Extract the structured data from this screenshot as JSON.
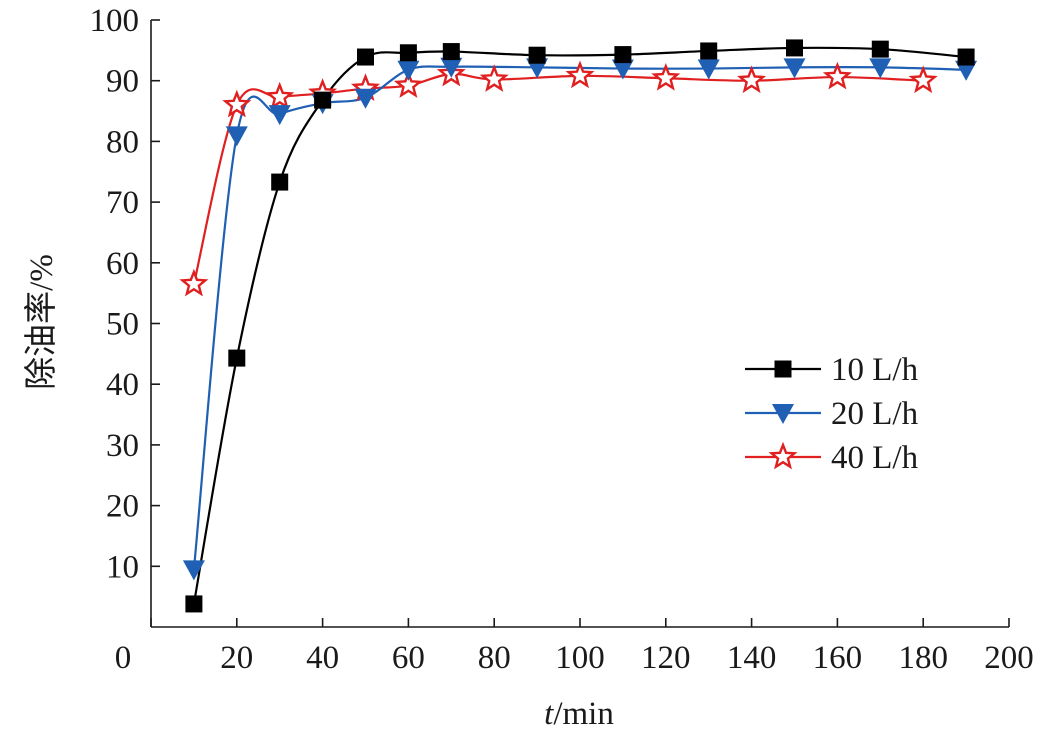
{
  "chart_data": {
    "type": "line",
    "title": "",
    "xlabel_italic": "t",
    "xlabel_unit": "/min",
    "ylabel": "除油率/%",
    "xlim": [
      0,
      200
    ],
    "ylim": [
      0,
      100
    ],
    "xticks": [
      0,
      20,
      40,
      60,
      80,
      100,
      120,
      140,
      160,
      180,
      200
    ],
    "yticks": [
      10,
      20,
      30,
      40,
      50,
      60,
      70,
      80,
      90,
      100
    ],
    "grid": false,
    "legend_position": "right-middle",
    "series": [
      {
        "name": "10 L/h",
        "marker": "square",
        "color": "#000000",
        "x": [
          10,
          20,
          30,
          40,
          50,
          60,
          70,
          90,
          110,
          130,
          150,
          170,
          190
        ],
        "y": [
          3.8,
          44.3,
          73.3,
          86.8,
          93.9,
          94.6,
          94.8,
          94.2,
          94.3,
          94.9,
          95.4,
          95.2,
          93.9
        ]
      },
      {
        "name": "20 L/h",
        "marker": "triangle-down",
        "color": "#1f5fb4",
        "x": [
          10,
          20,
          30,
          40,
          50,
          60,
          70,
          90,
          110,
          130,
          150,
          170,
          190
        ],
        "y": [
          9.5,
          81.0,
          84.5,
          86.3,
          87.2,
          91.8,
          92.3,
          92.2,
          92.0,
          92.0,
          92.2,
          92.2,
          91.8
        ]
      },
      {
        "name": "40 L/h",
        "marker": "star",
        "color": "#e02020",
        "x": [
          10,
          20,
          30,
          40,
          50,
          60,
          70,
          80,
          100,
          120,
          140,
          160,
          180
        ],
        "y": [
          56.5,
          86.0,
          87.3,
          87.9,
          88.7,
          89.2,
          91.1,
          90.2,
          90.8,
          90.4,
          90.0,
          90.6,
          90.0
        ]
      }
    ]
  }
}
